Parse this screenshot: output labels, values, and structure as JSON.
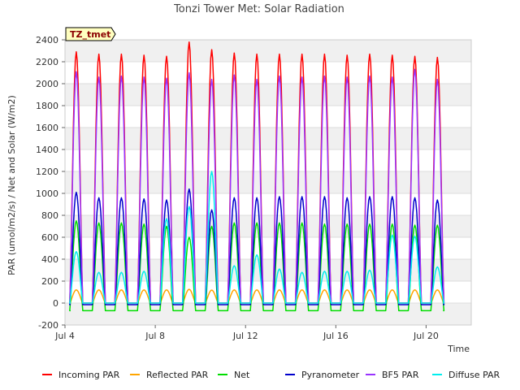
{
  "chart_data": {
    "type": "line",
    "title": "Tonzi Tower Met: Solar Radiation",
    "xlabel": "Time",
    "ylabel": "PAR (umol/m2/s) / Net and Solar (W/m2)",
    "tag": "TZ_tmet",
    "x_ticks": [
      "Jul 4",
      "Jul 8",
      "Jul 12",
      "Jul 16",
      "Jul 20"
    ],
    "x_tick_days": [
      4,
      8,
      12,
      16,
      20
    ],
    "xlim": [
      4,
      22.0
    ],
    "ylim": [
      -200,
      2400
    ],
    "y_ticks": [
      -200,
      0,
      200,
      400,
      600,
      800,
      1000,
      1200,
      1400,
      1600,
      1800,
      2000,
      2200,
      2400
    ],
    "grid": "horizontal bands",
    "legend_position": "bottom",
    "days": [
      4.5,
      5.5,
      6.5,
      7.5,
      8.5,
      9.5,
      10.5,
      11.5,
      12.5,
      13.5,
      14.5,
      15.5,
      16.5,
      17.5,
      18.5,
      19.5,
      20.5
    ],
    "series": [
      {
        "name": "Incoming PAR",
        "color": "#ff0000",
        "night": 0,
        "peaks": [
          2290,
          2270,
          2270,
          2260,
          2250,
          2380,
          2310,
          2280,
          2270,
          2270,
          2270,
          2270,
          2260,
          2270,
          2260,
          2250,
          2240
        ]
      },
      {
        "name": "Reflected PAR",
        "color": "#ffa500",
        "night": 0,
        "peaks": [
          120,
          120,
          120,
          120,
          120,
          125,
          118,
          120,
          120,
          120,
          120,
          120,
          120,
          120,
          120,
          120,
          120
        ]
      },
      {
        "name": "Net",
        "color": "#00dd00",
        "night": -70,
        "peaks": [
          750,
          730,
          730,
          720,
          700,
          600,
          700,
          730,
          730,
          730,
          730,
          720,
          720,
          720,
          720,
          710,
          710
        ]
      },
      {
        "name": "Pyranometer",
        "color": "#0000cc",
        "night": -15,
        "peaks": [
          1010,
          960,
          960,
          950,
          940,
          1040,
          850,
          960,
          960,
          970,
          970,
          970,
          960,
          970,
          970,
          960,
          940
        ]
      },
      {
        "name": "BF5 PAR",
        "color": "#9933ff",
        "night": 0,
        "peaks": [
          2110,
          2060,
          2070,
          2060,
          2050,
          2100,
          2040,
          2080,
          2040,
          2070,
          2060,
          2070,
          2060,
          2070,
          2060,
          2130,
          2040
        ]
      },
      {
        "name": "Diffuse PAR",
        "color": "#00eeee",
        "night": 0,
        "peaks": [
          470,
          280,
          280,
          290,
          770,
          880,
          1200,
          340,
          440,
          310,
          280,
          290,
          290,
          300,
          620,
          610,
          330
        ]
      }
    ]
  }
}
